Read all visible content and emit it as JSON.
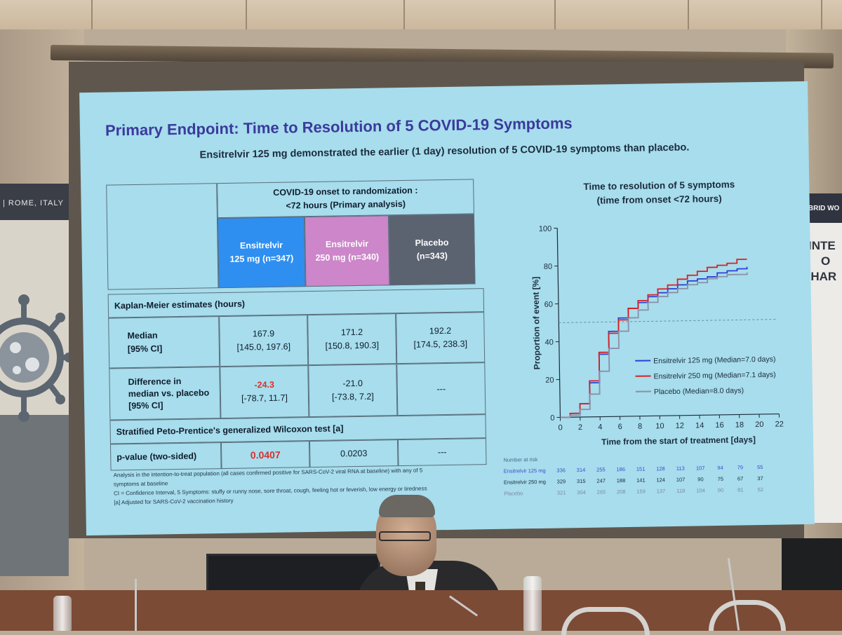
{
  "slide": {
    "title": "Primary Endpoint: Time to Resolution of 5 COVID-19 Symptoms",
    "subtitle": "Ensitrelvir 125 mg demonstrated the earlier (1 day) resolution of 5 COVID-19 symptoms than placebo."
  },
  "table": {
    "group_header_line1": "COVID-19 onset to randomization :",
    "group_header_line2": "<72 hours (Primary analysis)",
    "arms": [
      {
        "line1": "Ensitrelvir",
        "line2": "125 mg (n=347)",
        "color": "#2f8ff0"
      },
      {
        "line1": "Ensitrelvir",
        "line2": "250 mg (n=340)",
        "color": "#cc86c9"
      },
      {
        "line1": "Placebo",
        "line2": "(n=343)",
        "color": "#5b6270"
      }
    ],
    "km_header": "Kaplan-Meier estimates (hours)",
    "median_label_line1": "Median",
    "median_label_line2": "[95% CI]",
    "median_values": [
      {
        "value": "167.9",
        "ci": "[145.0, 197.6]"
      },
      {
        "value": "171.2",
        "ci": "[150.8, 190.3]"
      },
      {
        "value": "192.2",
        "ci": "[174.5, 238.3]"
      }
    ],
    "diff_label_line1": "Difference in",
    "diff_label_line2": "median vs. placebo",
    "diff_label_line3": "[95% CI]",
    "diff_values": [
      {
        "value": "-24.3",
        "ci": "[-78.7, 11.7]"
      },
      {
        "value": "-21.0",
        "ci": "[-73.8, 7.2]"
      },
      {
        "value": "---",
        "ci": ""
      }
    ],
    "wilcoxon_header": "Stratified Peto-Prentice's generalized Wilcoxon test [a]",
    "pvalue_label": "p-value (two-sided)",
    "pvalues": [
      "0.0407",
      "0.0203",
      "---"
    ]
  },
  "footnotes": {
    "line1": "Analysis in the intention-to-treat population (all cases confirmed positive for SARS-CoV-2 viral RNA at baseline) with any of 5",
    "line2": "symptoms at baseline",
    "line3": "CI = Confidence Interval, 5 Symptoms: stuffy or runny nose, sore throat, cough, feeling hot or feverish, low energy or tiredness",
    "line4": "[a] Adjusted for SARS-CoV-2 vaccination history"
  },
  "chart_title": {
    "line1": "Time to resolution of 5 symptoms",
    "line2": "(time from onset <72 hours)"
  },
  "chart_data": {
    "type": "line",
    "title": "Time to resolution of 5 symptoms (time from onset <72 hours)",
    "xlabel": "Time from the start of treatment [days]",
    "ylabel": "Proportion of event [%]",
    "xlim": [
      0,
      22
    ],
    "ylim": [
      0,
      100
    ],
    "x_ticks": [
      "0",
      "2",
      "4",
      "6",
      "8",
      "10",
      "12",
      "14",
      "16",
      "18",
      "20",
      "22"
    ],
    "y_ticks": [
      "0",
      "20",
      "40",
      "60",
      "80",
      "100"
    ],
    "reference_line_y": 50,
    "series": [
      {
        "name": "Ensitrelvir 125 mg (Median=7.0 days)",
        "color": "#2c3fd6",
        "x": [
          0,
          1,
          2,
          3,
          4,
          5,
          6,
          7,
          8,
          9,
          10,
          11,
          12,
          13,
          14,
          15,
          16,
          17,
          18,
          19
        ],
        "y": [
          0,
          2,
          7,
          18,
          33,
          45,
          52,
          57,
          60,
          63,
          65,
          67,
          69,
          71,
          72,
          73,
          75,
          76,
          77,
          78
        ]
      },
      {
        "name": "Ensitrelvir 250 mg (Median=7.1 days)",
        "color": "#d92020",
        "x": [
          0,
          1,
          2,
          3,
          4,
          5,
          6,
          7,
          8,
          9,
          10,
          11,
          12,
          13,
          14,
          15,
          16,
          17,
          18,
          19
        ],
        "y": [
          0,
          2,
          7,
          19,
          34,
          44,
          51,
          57,
          61,
          64,
          67,
          69,
          72,
          74,
          76,
          78,
          79,
          80,
          82,
          82
        ]
      },
      {
        "name": "Placebo (Median=8.0 days)",
        "color": "#8a8fa6",
        "x": [
          0,
          1,
          2,
          3,
          4,
          5,
          6,
          7,
          8,
          9,
          10,
          11,
          12,
          13,
          14,
          15,
          16,
          17,
          18,
          19
        ],
        "y": [
          0,
          1,
          4,
          12,
          24,
          36,
          45,
          52,
          56,
          60,
          63,
          65,
          67,
          69,
          70,
          72,
          73,
          74,
          74,
          75
        ]
      }
    ],
    "number_at_risk": {
      "label": "Number at risk",
      "rows": [
        {
          "name": "Ensitrelvir 125 mg",
          "values": [
            "336",
            "314",
            "255",
            "186",
            "151",
            "128",
            "113",
            "107",
            "94",
            "79",
            "55"
          ]
        },
        {
          "name": "Ensitrelvir 250 mg",
          "values": [
            "329",
            "315",
            "247",
            "188",
            "141",
            "124",
            "107",
            "90",
            "75",
            "67",
            "37"
          ]
        },
        {
          "name": "Placebo",
          "values": [
            "321",
            "304",
            "265",
            "208",
            "159",
            "137",
            "118",
            "104",
            "90",
            "81",
            "52"
          ]
        }
      ]
    }
  },
  "signage": {
    "left_banner": "| ROME, ITALY",
    "right_banner_small": "HYBRID WO",
    "right_banner_big_1": "INTE",
    "right_banner_big_2": "O",
    "right_banner_big_3": "PHAR"
  },
  "colors": {
    "slide_bg": "#a7ddec",
    "title_color": "#3b3a9d"
  }
}
